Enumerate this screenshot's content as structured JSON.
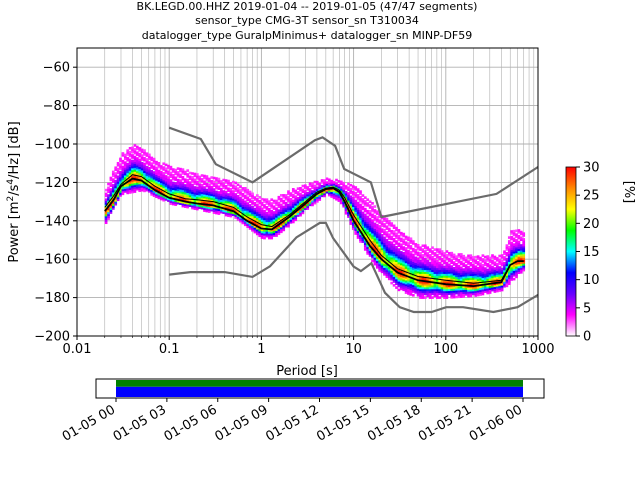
{
  "title": {
    "line1": "BK.LEGD.00.HHZ   2019-01-04 -- 2019-01-05  (47/47 segments)",
    "line2": "sensor_type CMG-3T sensor_sn T310034",
    "line3": "datalogger_type GuralpMinimus+ datalogger_sn MINP-DF59"
  },
  "colors": {
    "model_curves": "#6b6b6b",
    "mean_curve": "#000000",
    "grid": "#b0b0b0",
    "data_coverage_green": "#008000",
    "data_coverage_blue": "#0000ff"
  },
  "chart_data": [
    {
      "type": "heatmap",
      "xscale": "log",
      "xlim": [
        0.01,
        1000
      ],
      "ylim": [
        -200,
        -50
      ],
      "xticks": [
        0.01,
        0.1,
        1,
        10,
        100,
        1000
      ],
      "xtick_labels": [
        "0.01",
        "0.1",
        "1",
        "10",
        "100",
        "1000"
      ],
      "yticks": [
        -200,
        -180,
        -160,
        -140,
        -120,
        -100,
        -80,
        -60
      ],
      "ytick_labels": [
        "−200",
        "−180",
        "−160",
        "−140",
        "−120",
        "−100",
        "−80",
        "−60"
      ],
      "xlabel": "Period [s]",
      "ylabel_prefix": "Power [m",
      "ylabel_sup1": "2",
      "ylabel_mid": "/s",
      "ylabel_sup2": "4",
      "ylabel_suffix": "/Hz] [dB]",
      "grid": true,
      "colorbar": {
        "label": "[%]",
        "range": [
          0,
          30
        ],
        "ticks": [
          0,
          5,
          10,
          15,
          20,
          25,
          30
        ],
        "tick_labels": [
          "0",
          "5",
          "10",
          "15",
          "20",
          "25",
          "30"
        ],
        "stops": [
          "#ffffff",
          "#ff00ff",
          "#6600ff",
          "#0000ff",
          "#00ffff",
          "#00ff00",
          "#ffff00",
          "#ff8800",
          "#ff0000"
        ]
      },
      "noise_model_high": {
        "x": [
          0.1,
          0.22,
          0.32,
          0.8,
          3.8,
          4.6,
          6.3,
          7.9,
          15.4,
          20,
          354.8,
          1000
        ],
        "y": [
          -91.5,
          -97.4,
          -110.5,
          -120,
          -98,
          -96.5,
          -101,
          -113,
          -120,
          -138,
          -126,
          -112
        ]
      },
      "noise_model_low": {
        "x": [
          0.1,
          0.17,
          0.4,
          0.8,
          1.24,
          2.4,
          4.3,
          5.0,
          6.0,
          10.0,
          12.0,
          15.6,
          21.9,
          31.6,
          45,
          70,
          101,
          154,
          328,
          600,
          1000
        ],
        "y": [
          -168,
          -166.7,
          -166.7,
          -169.2,
          -163.7,
          -148.6,
          -141.1,
          -141.1,
          -149,
          -163.8,
          -166.2,
          -162.1,
          -177.5,
          -185,
          -187.5,
          -187.5,
          -185,
          -185,
          -187.5,
          -185,
          -178.6
        ]
      },
      "mean_psd": {
        "x": [
          0.02,
          0.025,
          0.03,
          0.04,
          0.05,
          0.07,
          0.1,
          0.15,
          0.2,
          0.3,
          0.5,
          0.7,
          1,
          1.3,
          2,
          3,
          4,
          5,
          6,
          7,
          8,
          10,
          15,
          20,
          30,
          50,
          100,
          200,
          400,
          500,
          600,
          700
        ],
        "y": [
          -133,
          -127,
          -121,
          -116,
          -117,
          -122,
          -126,
          -128.5,
          -129,
          -130,
          -133,
          -138,
          -142,
          -143,
          -137,
          -130,
          -125,
          -123,
          -122.5,
          -124,
          -128,
          -137,
          -150,
          -158,
          -165,
          -169,
          -171,
          -172.5,
          -171,
          -163,
          -161,
          -161
        ]
      },
      "mode_psd": {
        "x": [
          0.02,
          0.025,
          0.03,
          0.04,
          0.05,
          0.07,
          0.1,
          0.15,
          0.2,
          0.3,
          0.5,
          0.7,
          1,
          1.3,
          2,
          3,
          4,
          5,
          6,
          7,
          8,
          10,
          15,
          20,
          30,
          50,
          100,
          200,
          400,
          500,
          600,
          700
        ],
        "y": [
          -135,
          -129,
          -122,
          -118,
          -119,
          -124,
          -128,
          -130,
          -131,
          -132,
          -135,
          -140,
          -144,
          -144.5,
          -138,
          -131,
          -126,
          -123.5,
          -123,
          -125,
          -130,
          -140,
          -153,
          -160,
          -167,
          -171,
          -173,
          -174,
          -172,
          -163,
          -161,
          -161
        ]
      },
      "min_psd": {
        "x": [
          0.02,
          0.025,
          0.03,
          0.05,
          0.1,
          0.2,
          0.5,
          1,
          1.3,
          2,
          3,
          5,
          7,
          10,
          15,
          20,
          30,
          50,
          100,
          200,
          400,
          700
        ],
        "y": [
          -141,
          -133,
          -126,
          -124,
          -131,
          -134,
          -138,
          -149,
          -149,
          -142,
          -134,
          -126,
          -130,
          -146,
          -160,
          -168,
          -176,
          -180,
          -180,
          -179,
          -176,
          -165
        ]
      },
      "max_psd": {
        "x": [
          0.02,
          0.025,
          0.03,
          0.04,
          0.05,
          0.07,
          0.1,
          0.2,
          0.3,
          0.5,
          1,
          1.3,
          2,
          3,
          5,
          7,
          10,
          15,
          20,
          30,
          50,
          100,
          200,
          400,
          500,
          700
        ],
        "y": [
          -124,
          -112,
          -105,
          -100,
          -102,
          -108,
          -112,
          -115,
          -117,
          -120,
          -128,
          -129,
          -124,
          -121,
          -118,
          -119,
          -122,
          -130,
          -137,
          -145,
          -152,
          -156,
          -158,
          -158,
          -145,
          -145
        ]
      }
    },
    {
      "type": "bar",
      "ticks": [
        "01-05 00",
        "01-05 03",
        "01-05 06",
        "01-05 09",
        "01-05 12",
        "01-05 15",
        "01-05 18",
        "01-05 21",
        "01-06 00"
      ],
      "coverage_hours": [
        0,
        24
      ],
      "bands": [
        {
          "fraction": 0.4,
          "color": "#008000"
        },
        {
          "fraction": 0.6,
          "color": "#0000ff"
        }
      ]
    }
  ]
}
